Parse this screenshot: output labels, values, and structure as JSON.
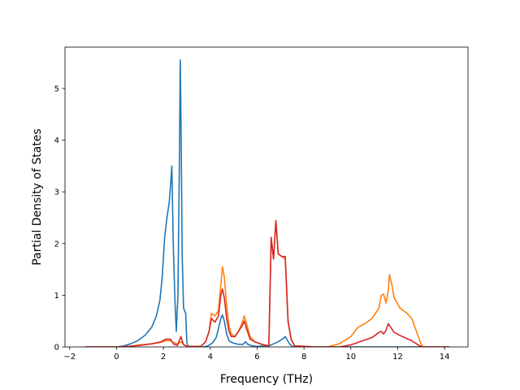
{
  "chart_data": {
    "type": "line",
    "title": "",
    "xlabel": "Frequency (THz)",
    "ylabel": "Partial Density of States",
    "xlim": [
      -2.2,
      15.0
    ],
    "ylim": [
      0,
      5.8
    ],
    "xticks": [
      -2,
      0,
      2,
      4,
      6,
      8,
      10,
      12,
      14
    ],
    "yticks": [
      0,
      1,
      2,
      3,
      4,
      5
    ],
    "grid": false,
    "legend": "none",
    "series": [
      {
        "color": "#1f77b4",
        "points": [
          [
            -1.35,
            0
          ],
          [
            0.0,
            0
          ],
          [
            0.3,
            0.02
          ],
          [
            0.6,
            0.06
          ],
          [
            0.9,
            0.12
          ],
          [
            1.2,
            0.22
          ],
          [
            1.5,
            0.38
          ],
          [
            1.7,
            0.6
          ],
          [
            1.85,
            0.9
          ],
          [
            1.95,
            1.35
          ],
          [
            2.05,
            2.1
          ],
          [
            2.15,
            2.5
          ],
          [
            2.25,
            2.8
          ],
          [
            2.3,
            3.1
          ],
          [
            2.36,
            3.5
          ],
          [
            2.42,
            2.0
          ],
          [
            2.5,
            0.8
          ],
          [
            2.55,
            0.3
          ],
          [
            2.62,
            1.0
          ],
          [
            2.68,
            3.5
          ],
          [
            2.72,
            5.55
          ],
          [
            2.76,
            4.0
          ],
          [
            2.8,
            1.8
          ],
          [
            2.86,
            0.75
          ],
          [
            2.95,
            0.65
          ],
          [
            3.0,
            0.1
          ],
          [
            3.05,
            0
          ],
          [
            3.7,
            0
          ],
          [
            3.9,
            0.02
          ],
          [
            4.1,
            0.08
          ],
          [
            4.25,
            0.18
          ],
          [
            4.35,
            0.35
          ],
          [
            4.45,
            0.55
          ],
          [
            4.52,
            0.62
          ],
          [
            4.6,
            0.5
          ],
          [
            4.7,
            0.25
          ],
          [
            4.8,
            0.12
          ],
          [
            4.95,
            0.08
          ],
          [
            5.2,
            0.05
          ],
          [
            5.4,
            0.05
          ],
          [
            5.5,
            0.1
          ],
          [
            5.6,
            0.05
          ],
          [
            5.8,
            0.02
          ],
          [
            6.0,
            0.01
          ],
          [
            6.5,
            0.02
          ],
          [
            6.7,
            0.06
          ],
          [
            6.9,
            0.1
          ],
          [
            7.1,
            0.16
          ],
          [
            7.2,
            0.2
          ],
          [
            7.3,
            0.12
          ],
          [
            7.4,
            0.05
          ],
          [
            7.5,
            0.01
          ],
          [
            7.6,
            0
          ],
          [
            14.2,
            0
          ]
        ]
      },
      {
        "color": "#ff7f0e",
        "points": [
          [
            -1.35,
            0
          ],
          [
            0.0,
            0
          ],
          [
            0.5,
            0.01
          ],
          [
            1.0,
            0.04
          ],
          [
            1.5,
            0.06
          ],
          [
            1.9,
            0.09
          ],
          [
            2.1,
            0.12
          ],
          [
            2.3,
            0.12
          ],
          [
            2.45,
            0.08
          ],
          [
            2.6,
            0.06
          ],
          [
            2.75,
            0.1
          ],
          [
            2.85,
            0.05
          ],
          [
            3.0,
            0.01
          ],
          [
            3.6,
            0.01
          ],
          [
            3.8,
            0.1
          ],
          [
            3.95,
            0.3
          ],
          [
            4.05,
            0.65
          ],
          [
            4.2,
            0.6
          ],
          [
            4.35,
            0.7
          ],
          [
            4.45,
            1.2
          ],
          [
            4.52,
            1.55
          ],
          [
            4.6,
            1.35
          ],
          [
            4.7,
            0.8
          ],
          [
            4.8,
            0.4
          ],
          [
            4.9,
            0.25
          ],
          [
            5.05,
            0.2
          ],
          [
            5.2,
            0.3
          ],
          [
            5.35,
            0.45
          ],
          [
            5.45,
            0.6
          ],
          [
            5.55,
            0.45
          ],
          [
            5.7,
            0.2
          ],
          [
            5.9,
            0.1
          ],
          [
            6.2,
            0.05
          ],
          [
            6.5,
            0.02
          ],
          [
            6.6,
            2.1
          ],
          [
            6.7,
            1.7
          ],
          [
            6.8,
            2.45
          ],
          [
            6.9,
            1.8
          ],
          [
            7.05,
            1.75
          ],
          [
            7.2,
            1.7
          ],
          [
            7.32,
            0.5
          ],
          [
            7.45,
            0.15
          ],
          [
            7.6,
            0.02
          ],
          [
            8.5,
            0
          ],
          [
            9.0,
            0
          ],
          [
            9.5,
            0.06
          ],
          [
            10.0,
            0.2
          ],
          [
            10.3,
            0.38
          ],
          [
            10.6,
            0.45
          ],
          [
            10.9,
            0.55
          ],
          [
            11.2,
            0.75
          ],
          [
            11.3,
            1.0
          ],
          [
            11.4,
            1.02
          ],
          [
            11.5,
            0.85
          ],
          [
            11.6,
            1.1
          ],
          [
            11.65,
            1.4
          ],
          [
            11.75,
            1.2
          ],
          [
            11.85,
            0.95
          ],
          [
            12.1,
            0.75
          ],
          [
            12.4,
            0.65
          ],
          [
            12.6,
            0.55
          ],
          [
            12.8,
            0.3
          ],
          [
            13.0,
            0.05
          ],
          [
            13.1,
            0
          ],
          [
            14.2,
            0
          ]
        ]
      },
      {
        "color": "#d62728",
        "points": [
          [
            -1.35,
            0
          ],
          [
            0.0,
            0
          ],
          [
            0.5,
            0.01
          ],
          [
            1.0,
            0.03
          ],
          [
            1.5,
            0.06
          ],
          [
            1.9,
            0.1
          ],
          [
            2.1,
            0.15
          ],
          [
            2.3,
            0.15
          ],
          [
            2.45,
            0.05
          ],
          [
            2.6,
            0.03
          ],
          [
            2.75,
            0.2
          ],
          [
            2.85,
            0.05
          ],
          [
            3.0,
            0.01
          ],
          [
            3.6,
            0.01
          ],
          [
            3.8,
            0.1
          ],
          [
            3.95,
            0.3
          ],
          [
            4.05,
            0.55
          ],
          [
            4.2,
            0.48
          ],
          [
            4.35,
            0.6
          ],
          [
            4.45,
            1.0
          ],
          [
            4.52,
            1.12
          ],
          [
            4.6,
            0.95
          ],
          [
            4.7,
            0.55
          ],
          [
            4.8,
            0.3
          ],
          [
            4.9,
            0.2
          ],
          [
            5.05,
            0.2
          ],
          [
            5.2,
            0.3
          ],
          [
            5.35,
            0.4
          ],
          [
            5.45,
            0.5
          ],
          [
            5.55,
            0.35
          ],
          [
            5.7,
            0.15
          ],
          [
            5.9,
            0.1
          ],
          [
            6.2,
            0.05
          ],
          [
            6.5,
            0.02
          ],
          [
            6.6,
            2.12
          ],
          [
            6.7,
            1.7
          ],
          [
            6.8,
            2.44
          ],
          [
            6.9,
            1.8
          ],
          [
            7.05,
            1.75
          ],
          [
            7.2,
            1.75
          ],
          [
            7.32,
            0.5
          ],
          [
            7.45,
            0.15
          ],
          [
            7.6,
            0.02
          ],
          [
            8.5,
            0
          ],
          [
            9.5,
            0
          ],
          [
            10.0,
            0.04
          ],
          [
            10.5,
            0.12
          ],
          [
            10.9,
            0.18
          ],
          [
            11.2,
            0.28
          ],
          [
            11.3,
            0.3
          ],
          [
            11.4,
            0.25
          ],
          [
            11.5,
            0.32
          ],
          [
            11.6,
            0.45
          ],
          [
            11.7,
            0.38
          ],
          [
            11.85,
            0.28
          ],
          [
            12.2,
            0.2
          ],
          [
            12.6,
            0.12
          ],
          [
            12.9,
            0.03
          ],
          [
            13.05,
            0
          ],
          [
            14.2,
            0
          ]
        ]
      }
    ]
  }
}
